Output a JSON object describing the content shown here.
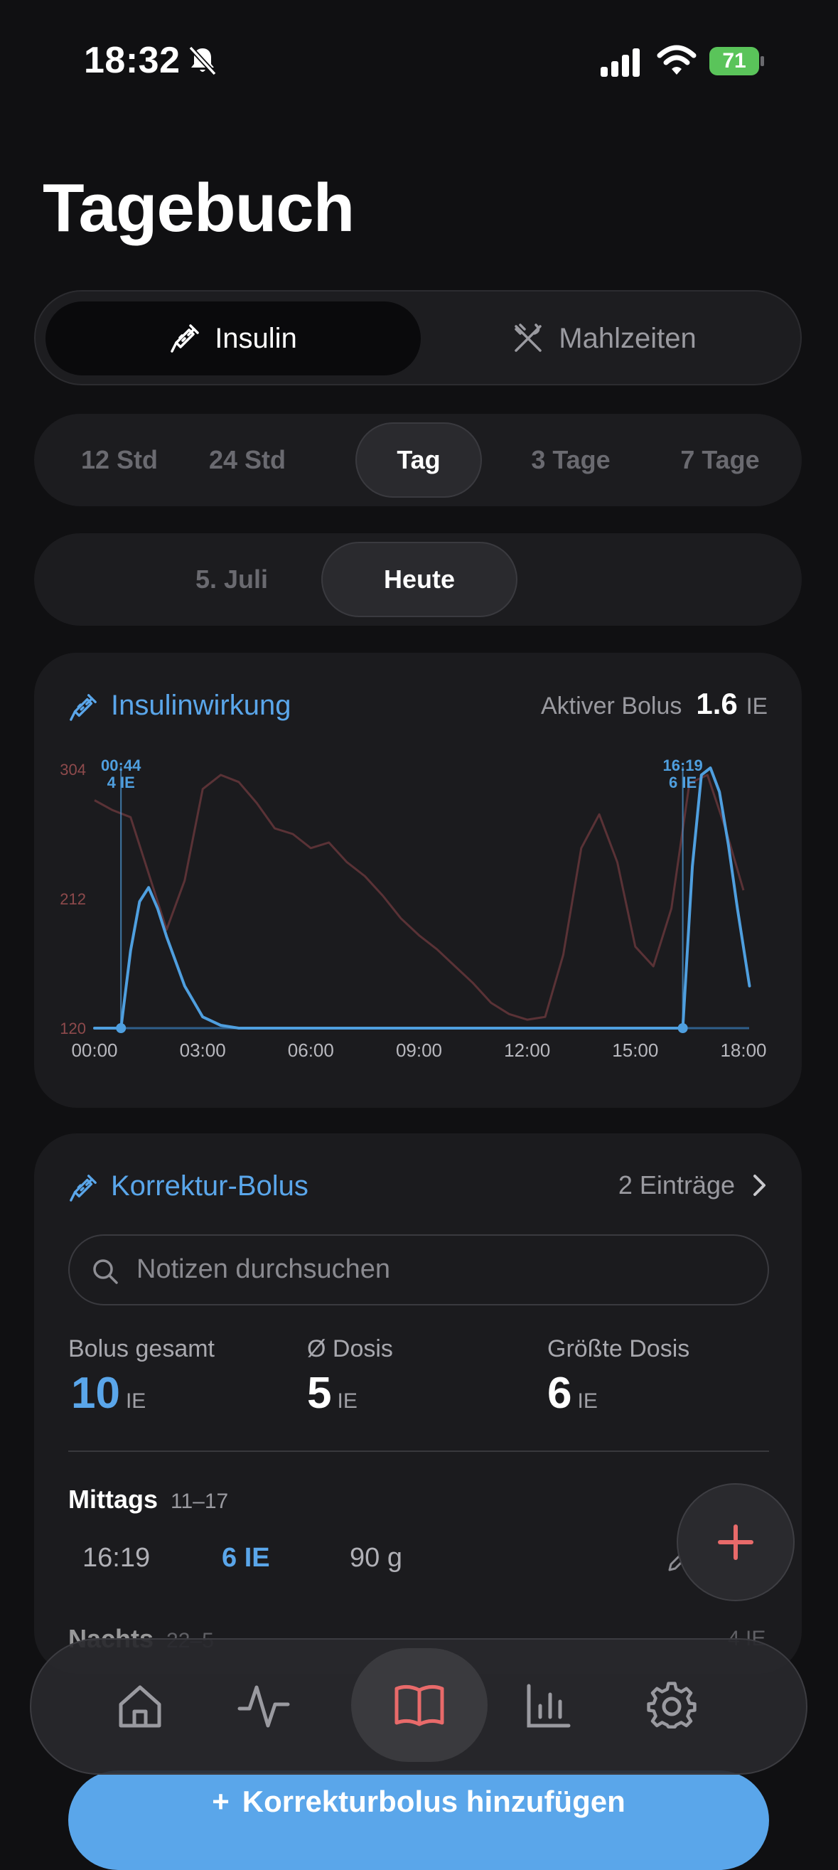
{
  "status_bar": {
    "time": "18:32",
    "battery": "71"
  },
  "page_title": "Tagebuch",
  "segments": [
    {
      "label": "Insulin",
      "icon": "syringe-icon",
      "active": true
    },
    {
      "label": "Mahlzeiten",
      "icon": "fork-knife-crossed-icon",
      "active": false
    }
  ],
  "ranges": [
    "12 Std",
    "24 Std",
    "Tag",
    "3 Tage",
    "7 Tage"
  ],
  "dates": [
    "5. Juli",
    "Heute"
  ],
  "effect_card": {
    "title": "Insulinwirkung",
    "active_label": "Aktiver Bolus",
    "active_value": "1.6",
    "active_unit": "IE"
  },
  "chart_data": {
    "type": "line",
    "x_ticks": [
      "00:00",
      "03:00",
      "06:00",
      "09:00",
      "12:00",
      "15:00",
      "18:00"
    ],
    "y_ticks": [
      "304",
      "212",
      "120"
    ],
    "ylim": [
      120,
      304
    ],
    "colors": {
      "glucose": "#5a3236",
      "insulin": "#4f9fdf",
      "axis_red": "#8e4a4c"
    },
    "series": [
      {
        "id": "glucose",
        "x": [
          "00:00",
          "00:30",
          "01:00",
          "01:30",
          "02:00",
          "02:30",
          "03:00",
          "03:30",
          "04:00",
          "04:30",
          "05:00",
          "05:30",
          "06:00",
          "06:30",
          "07:00",
          "07:30",
          "08:00",
          "08:30",
          "09:00",
          "09:30",
          "10:00",
          "10:30",
          "11:00",
          "11:30",
          "12:00",
          "12:30",
          "13:00",
          "13:30",
          "14:00",
          "14:30",
          "15:00",
          "15:30",
          "16:00",
          "16:30",
          "17:00",
          "17:30",
          "18:00"
        ],
        "y": [
          282,
          275,
          270,
          230,
          190,
          225,
          290,
          300,
          295,
          280,
          262,
          258,
          248,
          252,
          238,
          228,
          214,
          198,
          186,
          176,
          164,
          152,
          138,
          130,
          126,
          128,
          172,
          248,
          272,
          238,
          178,
          164,
          205,
          294,
          300,
          262,
          218
        ]
      },
      {
        "id": "insulin_activity",
        "x": [
          "00:00",
          "00:44",
          "01:00",
          "01:15",
          "01:30",
          "01:45",
          "02:00",
          "02:30",
          "03:00",
          "03:30",
          "04:00",
          "05:00",
          "10:00",
          "15:00",
          "16:19",
          "16:35",
          "16:50",
          "17:05",
          "17:20",
          "17:35",
          "17:50",
          "18:10"
        ],
        "y": [
          120,
          120,
          175,
          210,
          220,
          205,
          185,
          150,
          128,
          122,
          120,
          120,
          120,
          120,
          120,
          235,
          300,
          305,
          288,
          250,
          205,
          150
        ]
      }
    ],
    "annotations": [
      {
        "x": "00:44",
        "time": "00:44",
        "dose": "4 IE"
      },
      {
        "x": "16:19",
        "time": "16:19",
        "dose": "6 IE"
      }
    ]
  },
  "bolus_card": {
    "title": "Korrektur-Bolus",
    "entries": "2 Einträge",
    "search_placeholder": "Notizen durchsuchen",
    "stats": [
      {
        "label": "Bolus gesamt",
        "value": "10",
        "unit": "IE"
      },
      {
        "label": "Ø Dosis",
        "value": "5",
        "unit": "IE"
      },
      {
        "label": "Größte Dosis",
        "value": "6",
        "unit": "IE"
      }
    ],
    "group1": {
      "name": "Mittags",
      "range": "11–17"
    },
    "entry": {
      "time": "16:19",
      "dose": "6 IE",
      "carbs": "90 g"
    },
    "group2": {
      "name": "Nachts",
      "range": "22–5",
      "dose": "4 IE"
    }
  },
  "tabbar": [
    {
      "name": "home-icon"
    },
    {
      "name": "activity-icon"
    },
    {
      "name": "book-icon",
      "active": true
    },
    {
      "name": "bar-chart-icon"
    },
    {
      "name": "gear-icon"
    }
  ],
  "add_button": "Korrekturbolus hinzufügen",
  "colors": {
    "accent_blue": "#5aa6ea",
    "accent_red": "#e86a6a",
    "background": "#101012",
    "card": "#1b1b1e"
  }
}
